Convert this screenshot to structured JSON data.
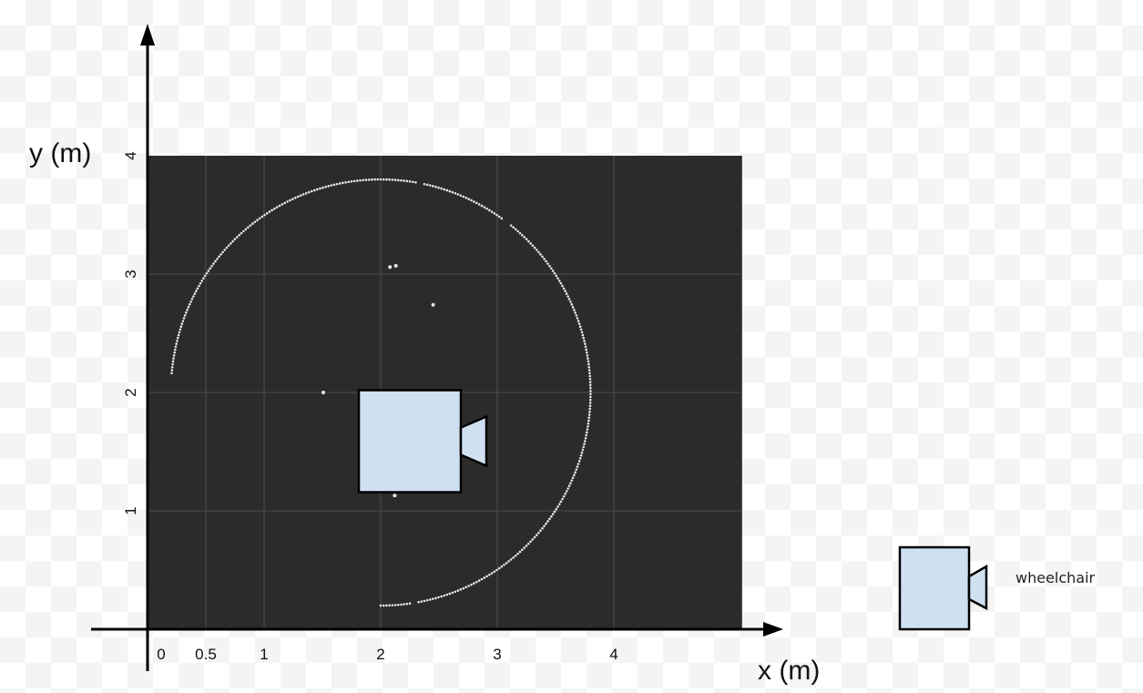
{
  "chart_data": {
    "type": "scatter",
    "title": "",
    "xlabel": "x (m)",
    "ylabel": "y (m)",
    "xlim": [
      0,
      5.1
    ],
    "ylim": [
      0,
      4.0
    ],
    "grid": true,
    "x_ticks": [
      {
        "value": 0,
        "label": "0"
      },
      {
        "value": 0.5,
        "label": "0.5"
      },
      {
        "value": 1,
        "label": "1"
      },
      {
        "value": 2,
        "label": "2"
      },
      {
        "value": 3,
        "label": "3"
      },
      {
        "value": 4,
        "label": "4"
      }
    ],
    "y_ticks": [
      {
        "value": 1,
        "label": "1"
      },
      {
        "value": 2,
        "label": "2"
      },
      {
        "value": 3,
        "label": "3"
      },
      {
        "value": 4,
        "label": "4"
      }
    ],
    "plot_background": "#2b2b2b",
    "grid_color": "#4d4d4d",
    "point_color": "#e6e6e6",
    "scan_arc": {
      "center": [
        2.0,
        2.0
      ],
      "radius": 1.8,
      "start_deg": -90,
      "end_deg": 175,
      "gaps_deg": [
        [
          -82,
          -80
        ],
        [
          78,
          80
        ],
        [
          52,
          54
        ]
      ]
    },
    "isolated_points": [
      {
        "x": 2.13,
        "y": 3.07
      },
      {
        "x": 2.45,
        "y": 2.74
      },
      {
        "x": 2.12,
        "y": 1.13
      },
      {
        "x": 2.08,
        "y": 3.06
      }
    ],
    "wheelchair": {
      "body_x": [
        2.35,
        3.2
      ],
      "body_y": [
        1.57,
        2.45
      ],
      "camera_x": [
        3.2,
        3.45
      ],
      "camera_y": [
        1.81,
        2.23
      ],
      "fill": "#cfe0f1",
      "stroke": "#000000"
    },
    "legend": {
      "label": "wheelchair",
      "placement": "bottom-right"
    }
  }
}
